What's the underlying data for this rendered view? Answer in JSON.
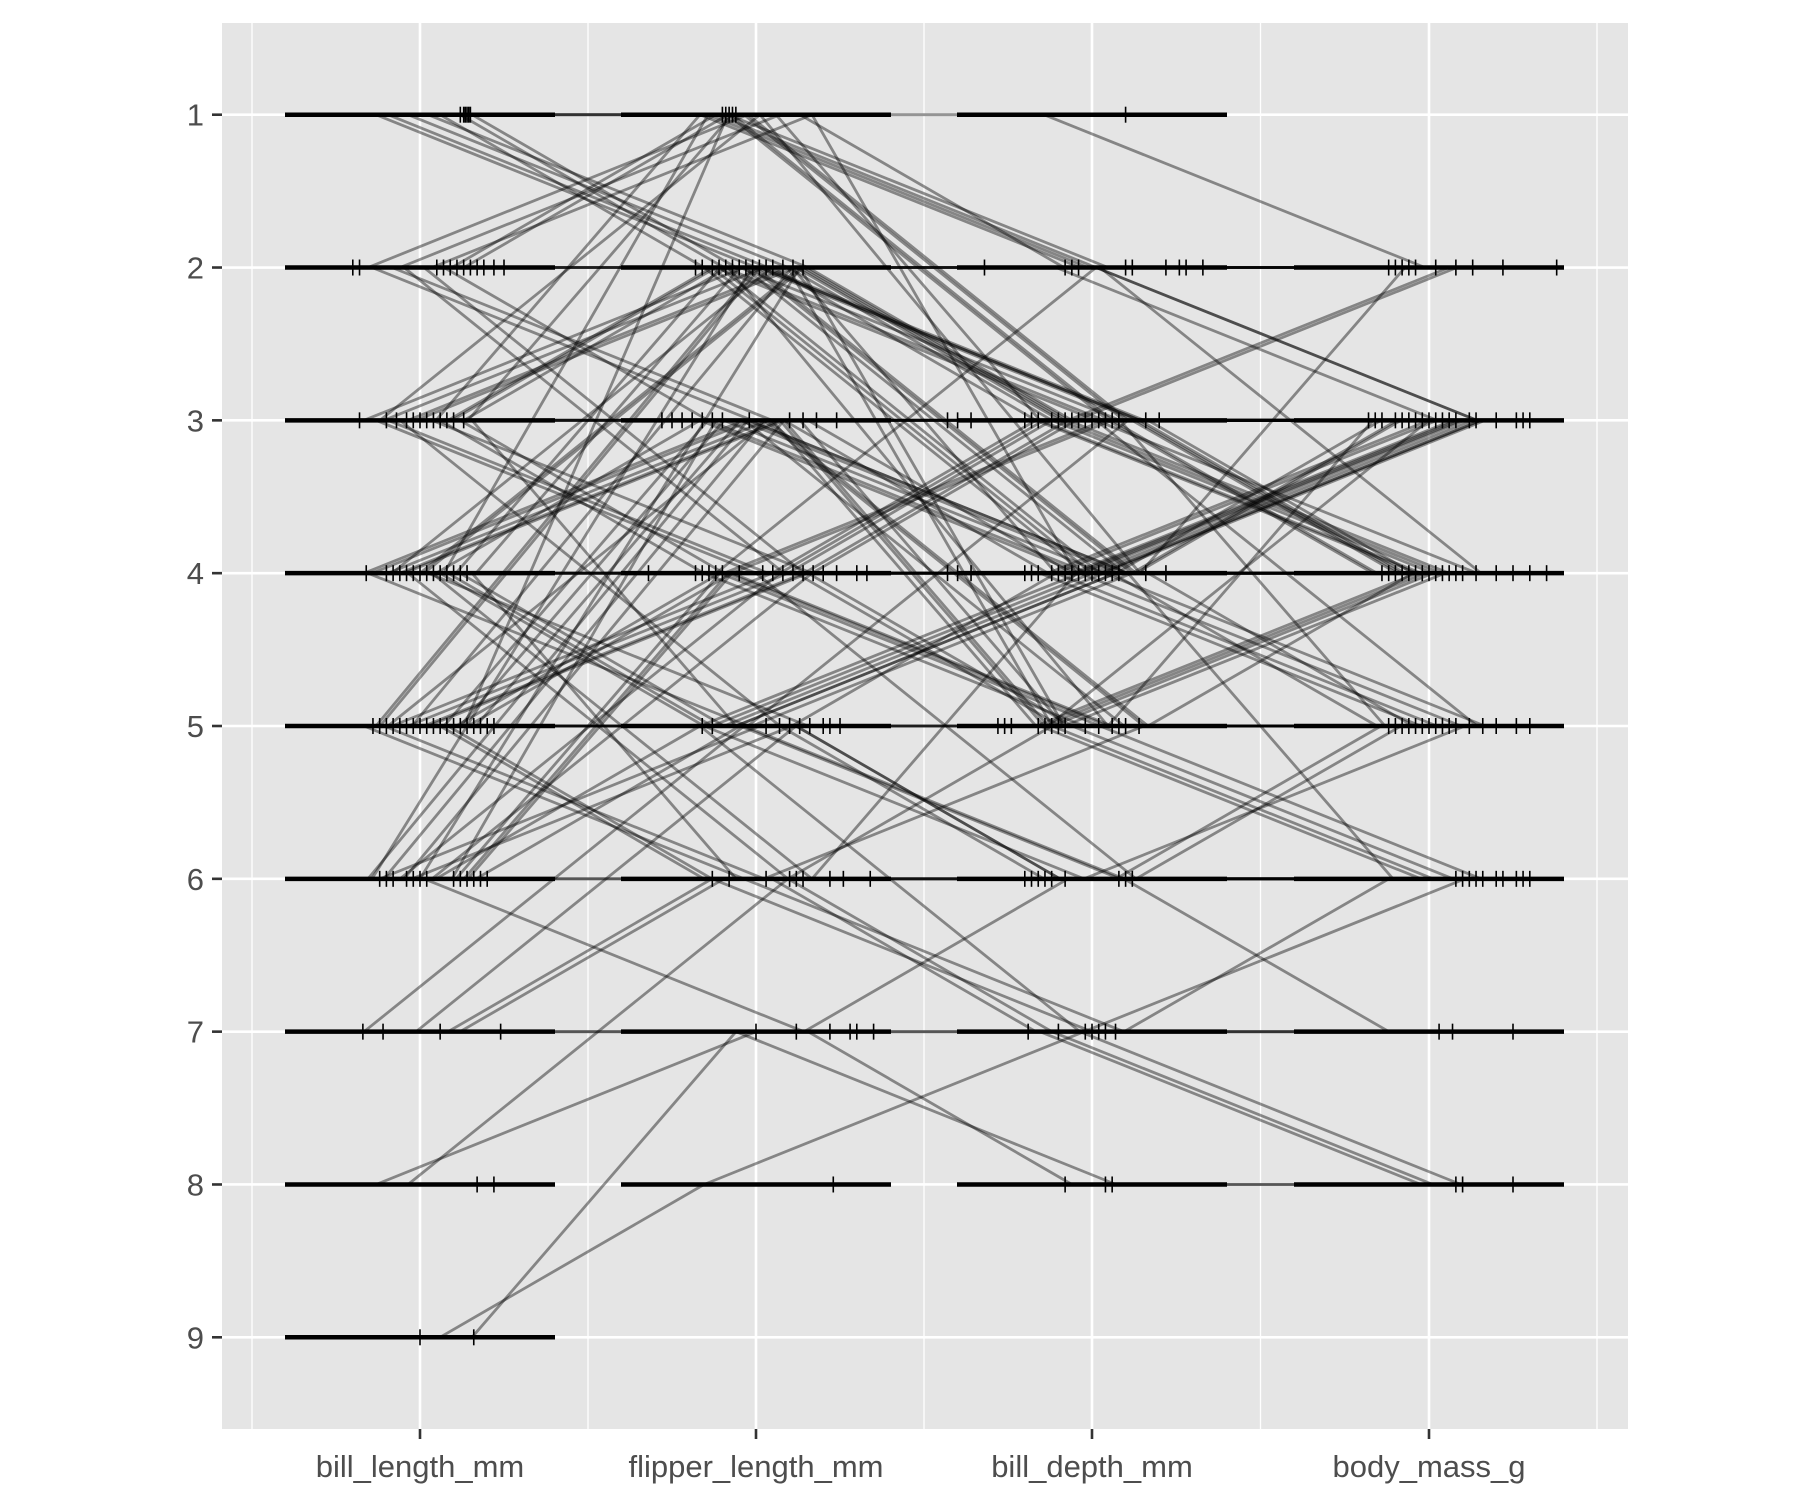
{
  "chart_data": {
    "type": "parallel-coordinates",
    "title": "",
    "xlabel": "",
    "ylabel": "",
    "categories": [
      "bill_length_mm",
      "flipper_length_mm",
      "bill_depth_mm",
      "body_mass_g"
    ],
    "y_ticks": [
      "1",
      "2",
      "3",
      "4",
      "5",
      "6",
      "7",
      "8",
      "9"
    ],
    "ylim": [
      0.4,
      9.6
    ],
    "grid": true,
    "legend": "none",
    "colors": {
      "panel_background": "#e5e5e5",
      "grid_line": "#ffffff",
      "reference_bar": "#000000",
      "series_line": "#000000",
      "tick_label": "#4d4d4d"
    },
    "ticks_per_axis": {
      "bill_length_mm": {
        "1": [
          0.12,
          0.13,
          0.135,
          0.14,
          0.145,
          0.15
        ],
        "2": [
          -0.2,
          -0.18,
          0.05,
          0.07,
          0.09,
          0.11,
          0.13,
          0.15,
          0.17,
          0.19,
          0.22,
          0.25
        ],
        "3": [
          -0.18,
          -0.1,
          -0.07,
          -0.04,
          -0.02,
          0.0,
          0.02,
          0.04,
          0.06,
          0.08,
          0.1,
          0.13
        ],
        "4": [
          -0.16,
          -0.1,
          -0.08,
          -0.06,
          -0.04,
          -0.02,
          0.0,
          0.02,
          0.04,
          0.06,
          0.08,
          0.1,
          0.12,
          0.14
        ],
        "5": [
          -0.14,
          -0.12,
          -0.1,
          -0.08,
          -0.06,
          -0.04,
          -0.02,
          0.0,
          0.02,
          0.04,
          0.06,
          0.08,
          0.1,
          0.12,
          0.14,
          0.16,
          0.18,
          0.2,
          0.22
        ],
        "6": [
          -0.12,
          -0.1,
          -0.08,
          -0.04,
          -0.02,
          0.0,
          0.02,
          0.1,
          0.12,
          0.14,
          0.16,
          0.18,
          0.2
        ],
        "7": [
          -0.17,
          -0.11,
          0.06,
          0.24
        ],
        "8": [
          0.17,
          0.22
        ],
        "9": [
          0.0,
          0.16
        ]
      },
      "flipper_length_mm": {
        "1": [
          -0.1,
          -0.09,
          -0.08,
          -0.07,
          -0.06
        ],
        "2": [
          -0.18,
          -0.16,
          -0.13,
          -0.11,
          -0.09,
          -0.07,
          -0.05,
          -0.03,
          -0.01,
          0.01,
          0.03,
          0.05,
          0.08,
          0.11,
          0.14
        ],
        "3": [
          -0.28,
          -0.25,
          -0.22,
          -0.19,
          -0.16,
          -0.13,
          -0.1,
          -0.02,
          0.1,
          0.14,
          0.18,
          0.24
        ],
        "4": [
          -0.32,
          -0.18,
          -0.16,
          -0.14,
          -0.12,
          -0.1,
          -0.05,
          0.02,
          0.05,
          0.08,
          0.11,
          0.14,
          0.17,
          0.2,
          0.24,
          0.3,
          0.33
        ],
        "5": [
          -0.16,
          -0.13,
          0.03,
          0.07,
          0.1,
          0.13,
          0.16,
          0.2,
          0.22,
          0.25
        ],
        "6": [
          -0.13,
          -0.08,
          0.03,
          0.1,
          0.12,
          0.14,
          0.22,
          0.26,
          0.34
        ],
        "7": [
          0.0,
          0.12,
          0.22,
          0.28,
          0.3,
          0.35
        ],
        "8": [
          0.23
        ]
      },
      "bill_depth_mm": {
        "1": [
          0.1
        ],
        "2": [
          -0.32,
          -0.08,
          -0.06,
          -0.04,
          0.1,
          0.12,
          0.22,
          0.26,
          0.28,
          0.33
        ],
        "3": [
          -0.43,
          -0.4,
          -0.36,
          -0.2,
          -0.18,
          -0.16,
          -0.12,
          -0.1,
          -0.08,
          -0.06,
          -0.04,
          -0.02,
          0.0,
          0.02,
          0.04,
          0.06,
          0.08,
          0.16,
          0.2
        ],
        "4": [
          -0.43,
          -0.4,
          -0.36,
          -0.2,
          -0.18,
          -0.16,
          -0.12,
          -0.1,
          -0.08,
          -0.06,
          -0.04,
          -0.02,
          0.0,
          0.02,
          0.04,
          0.06,
          0.08,
          0.16,
          0.22
        ],
        "5": [
          -0.28,
          -0.26,
          -0.24,
          -0.16,
          -0.14,
          -0.12,
          -0.1,
          -0.08,
          -0.02,
          0.02,
          0.06,
          0.08,
          0.1,
          0.14
        ],
        "6": [
          -0.2,
          -0.18,
          -0.16,
          -0.14,
          -0.12,
          -0.08,
          0.08,
          0.1,
          0.12
        ],
        "7": [
          -0.19,
          -0.1,
          -0.02,
          0.0,
          0.02,
          0.04,
          0.07
        ],
        "8": [
          -0.08,
          0.04,
          0.06
        ]
      },
      "body_mass_g": {
        "2": [
          -0.12,
          -0.1,
          -0.08,
          -0.06,
          -0.04,
          0.02,
          0.08,
          0.13,
          0.22,
          0.38
        ],
        "3": [
          -0.18,
          -0.16,
          -0.14,
          -0.1,
          -0.08,
          -0.06,
          -0.04,
          -0.02,
          0.0,
          0.02,
          0.04,
          0.06,
          0.08,
          0.12,
          0.14,
          0.2,
          0.26,
          0.28,
          0.3
        ],
        "4": [
          -0.14,
          -0.12,
          -0.1,
          -0.08,
          -0.06,
          -0.04,
          -0.02,
          0.0,
          0.02,
          0.04,
          0.06,
          0.08,
          0.1,
          0.14,
          0.2,
          0.25,
          0.3,
          0.35
        ],
        "5": [
          -0.12,
          -0.1,
          -0.08,
          -0.06,
          -0.04,
          -0.02,
          0.0,
          0.02,
          0.04,
          0.06,
          0.08,
          0.12,
          0.16,
          0.2,
          0.26,
          0.3
        ],
        "6": [
          0.08,
          0.1,
          0.12,
          0.14,
          0.16,
          0.2,
          0.22,
          0.26,
          0.28,
          0.3
        ],
        "7": [
          0.03,
          0.07,
          0.25
        ],
        "8": [
          0.08,
          0.1,
          0.25
        ]
      }
    },
    "series": [
      {
        "values": [
          1,
          1,
          3,
          3
        ]
      },
      {
        "values": [
          1,
          1,
          3,
          3
        ]
      },
      {
        "values": [
          1,
          2,
          3,
          3
        ]
      },
      {
        "values": [
          1,
          2,
          3,
          3
        ]
      },
      {
        "values": [
          1,
          2,
          3,
          4
        ]
      },
      {
        "values": [
          1,
          2,
          3,
          4
        ]
      },
      {
        "values": [
          1,
          2,
          4,
          3
        ]
      },
      {
        "values": [
          1,
          2,
          2,
          2
        ]
      },
      {
        "values": [
          1,
          2,
          2,
          2
        ]
      },
      {
        "values": [
          1,
          1,
          2,
          2
        ]
      },
      {
        "values": [
          2,
          1,
          2,
          3
        ]
      },
      {
        "values": [
          2,
          1,
          3,
          3
        ]
      },
      {
        "values": [
          2,
          1,
          1,
          2
        ]
      },
      {
        "values": [
          2,
          1,
          4,
          3
        ]
      },
      {
        "values": [
          2,
          1,
          3,
          4
        ]
      },
      {
        "values": [
          2,
          2,
          3,
          4
        ]
      },
      {
        "values": [
          2,
          2,
          4,
          3
        ]
      },
      {
        "values": [
          2,
          3,
          4,
          4
        ]
      },
      {
        "values": [
          2,
          2,
          3,
          5
        ]
      },
      {
        "values": [
          2,
          3,
          5,
          4
        ]
      },
      {
        "values": [
          2,
          4,
          3,
          2
        ]
      },
      {
        "values": [
          2,
          2,
          2,
          4
        ]
      },
      {
        "values": [
          2,
          3,
          3,
          4
        ]
      },
      {
        "values": [
          2,
          4,
          4,
          3
        ]
      },
      {
        "values": [
          3,
          1,
          2,
          2
        ]
      },
      {
        "values": [
          3,
          1,
          3,
          3
        ]
      },
      {
        "values": [
          3,
          2,
          3,
          3
        ]
      },
      {
        "values": [
          3,
          2,
          3,
          4
        ]
      },
      {
        "values": [
          3,
          2,
          4,
          3
        ]
      },
      {
        "values": [
          3,
          2,
          4,
          4
        ]
      },
      {
        "values": [
          3,
          3,
          3,
          4
        ]
      },
      {
        "values": [
          3,
          3,
          4,
          3
        ]
      },
      {
        "values": [
          3,
          4,
          3,
          3
        ]
      },
      {
        "values": [
          3,
          4,
          4,
          4
        ]
      },
      {
        "values": [
          3,
          2,
          5,
          4
        ]
      },
      {
        "values": [
          3,
          4,
          5,
          5
        ]
      },
      {
        "values": [
          3,
          5,
          4,
          4
        ]
      },
      {
        "values": [
          3,
          4,
          4,
          5
        ]
      },
      {
        "values": [
          3,
          3,
          5,
          5
        ]
      },
      {
        "values": [
          3,
          2,
          3,
          5
        ]
      },
      {
        "values": [
          3,
          3,
          4,
          6
        ]
      },
      {
        "values": [
          3,
          5,
          6,
          6
        ]
      },
      {
        "values": [
          3,
          4,
          3,
          2
        ]
      },
      {
        "values": [
          3,
          2,
          5,
          3
        ]
      },
      {
        "values": [
          3,
          1,
          4,
          2
        ]
      },
      {
        "values": [
          3,
          3,
          3,
          3
        ]
      },
      {
        "values": [
          4,
          1,
          2,
          2
        ]
      },
      {
        "values": [
          4,
          2,
          2,
          2
        ]
      },
      {
        "values": [
          4,
          2,
          3,
          3
        ]
      },
      {
        "values": [
          4,
          2,
          3,
          4
        ]
      },
      {
        "values": [
          4,
          2,
          4,
          3
        ]
      },
      {
        "values": [
          4,
          3,
          3,
          3
        ]
      },
      {
        "values": [
          4,
          3,
          4,
          4
        ]
      },
      {
        "values": [
          4,
          3,
          4,
          3
        ]
      },
      {
        "values": [
          4,
          4,
          3,
          4
        ]
      },
      {
        "values": [
          4,
          4,
          4,
          4
        ]
      },
      {
        "values": [
          4,
          4,
          5,
          5
        ]
      },
      {
        "values": [
          4,
          5,
          4,
          4
        ]
      },
      {
        "values": [
          4,
          3,
          5,
          5
        ]
      },
      {
        "values": [
          4,
          4,
          4,
          5
        ]
      },
      {
        "values": [
          4,
          5,
          5,
          5
        ]
      },
      {
        "values": [
          4,
          5,
          4,
          5
        ]
      },
      {
        "values": [
          4,
          4,
          6,
          5
        ]
      },
      {
        "values": [
          4,
          6,
          5,
          6
        ]
      },
      {
        "values": [
          4,
          5,
          6,
          6
        ]
      },
      {
        "values": [
          4,
          6,
          6,
          5
        ]
      },
      {
        "values": [
          4,
          3,
          3,
          4
        ]
      },
      {
        "values": [
          4,
          2,
          5,
          4
        ]
      },
      {
        "values": [
          4,
          4,
          2,
          3
        ]
      },
      {
        "values": [
          4,
          5,
          3,
          3
        ]
      },
      {
        "values": [
          4,
          3,
          5,
          4
        ]
      },
      {
        "values": [
          4,
          6,
          4,
          4
        ]
      },
      {
        "values": [
          5,
          1,
          2,
          2
        ]
      },
      {
        "values": [
          5,
          2,
          3,
          3
        ]
      },
      {
        "values": [
          5,
          2,
          2,
          3
        ]
      },
      {
        "values": [
          5,
          3,
          3,
          3
        ]
      },
      {
        "values": [
          5,
          3,
          4,
          4
        ]
      },
      {
        "values": [
          5,
          4,
          3,
          4
        ]
      },
      {
        "values": [
          5,
          4,
          4,
          4
        ]
      },
      {
        "values": [
          5,
          4,
          4,
          3
        ]
      },
      {
        "values": [
          5,
          5,
          4,
          4
        ]
      },
      {
        "values": [
          5,
          5,
          5,
          5
        ]
      },
      {
        "values": [
          5,
          5,
          4,
          5
        ]
      },
      {
        "values": [
          5,
          4,
          5,
          5
        ]
      },
      {
        "values": [
          5,
          6,
          5,
          5
        ]
      },
      {
        "values": [
          5,
          5,
          6,
          6
        ]
      },
      {
        "values": [
          5,
          6,
          6,
          6
        ]
      },
      {
        "values": [
          5,
          6,
          7,
          6
        ]
      },
      {
        "values": [
          5,
          5,
          5,
          6
        ]
      },
      {
        "values": [
          5,
          4,
          5,
          6
        ]
      },
      {
        "values": [
          5,
          3,
          4,
          3
        ]
      },
      {
        "values": [
          5,
          2,
          4,
          3
        ]
      },
      {
        "values": [
          5,
          4,
          3,
          3
        ]
      },
      {
        "values": [
          5,
          6,
          6,
          5
        ]
      },
      {
        "values": [
          5,
          5,
          4,
          3
        ]
      },
      {
        "values": [
          5,
          3,
          5,
          4
        ]
      },
      {
        "values": [
          6,
          2,
          3,
          3
        ]
      },
      {
        "values": [
          6,
          3,
          3,
          4
        ]
      },
      {
        "values": [
          6,
          3,
          4,
          4
        ]
      },
      {
        "values": [
          6,
          4,
          3,
          3
        ]
      },
      {
        "values": [
          6,
          4,
          4,
          4
        ]
      },
      {
        "values": [
          6,
          4,
          5,
          5
        ]
      },
      {
        "values": [
          6,
          5,
          5,
          5
        ]
      },
      {
        "values": [
          6,
          5,
          4,
          5
        ]
      },
      {
        "values": [
          6,
          6,
          6,
          6
        ]
      },
      {
        "values": [
          6,
          5,
          6,
          6
        ]
      },
      {
        "values": [
          6,
          6,
          7,
          7
        ]
      },
      {
        "values": [
          6,
          7,
          6,
          6
        ]
      },
      {
        "values": [
          6,
          4,
          5,
          6
        ]
      },
      {
        "values": [
          6,
          2,
          4,
          3
        ]
      },
      {
        "values": [
          6,
          3,
          5,
          3
        ]
      },
      {
        "values": [
          6,
          5,
          7,
          8
        ]
      },
      {
        "values": [
          6,
          4,
          4,
          5
        ]
      },
      {
        "values": [
          6,
          3,
          5,
          5
        ]
      },
      {
        "values": [
          7,
          5,
          6,
          6
        ]
      },
      {
        "values": [
          7,
          6,
          7,
          7
        ]
      },
      {
        "values": [
          7,
          5,
          6,
          7
        ]
      },
      {
        "values": [
          7,
          7,
          7,
          8
        ]
      },
      {
        "values": [
          7,
          7,
          8,
          8
        ]
      },
      {
        "values": [
          7,
          6,
          6,
          6
        ]
      },
      {
        "values": [
          8,
          7,
          7,
          7
        ]
      },
      {
        "values": [
          8,
          6,
          7,
          8
        ]
      },
      {
        "values": [
          9,
          8,
          7,
          6
        ]
      },
      {
        "values": [
          9,
          7,
          8,
          8
        ]
      }
    ]
  }
}
